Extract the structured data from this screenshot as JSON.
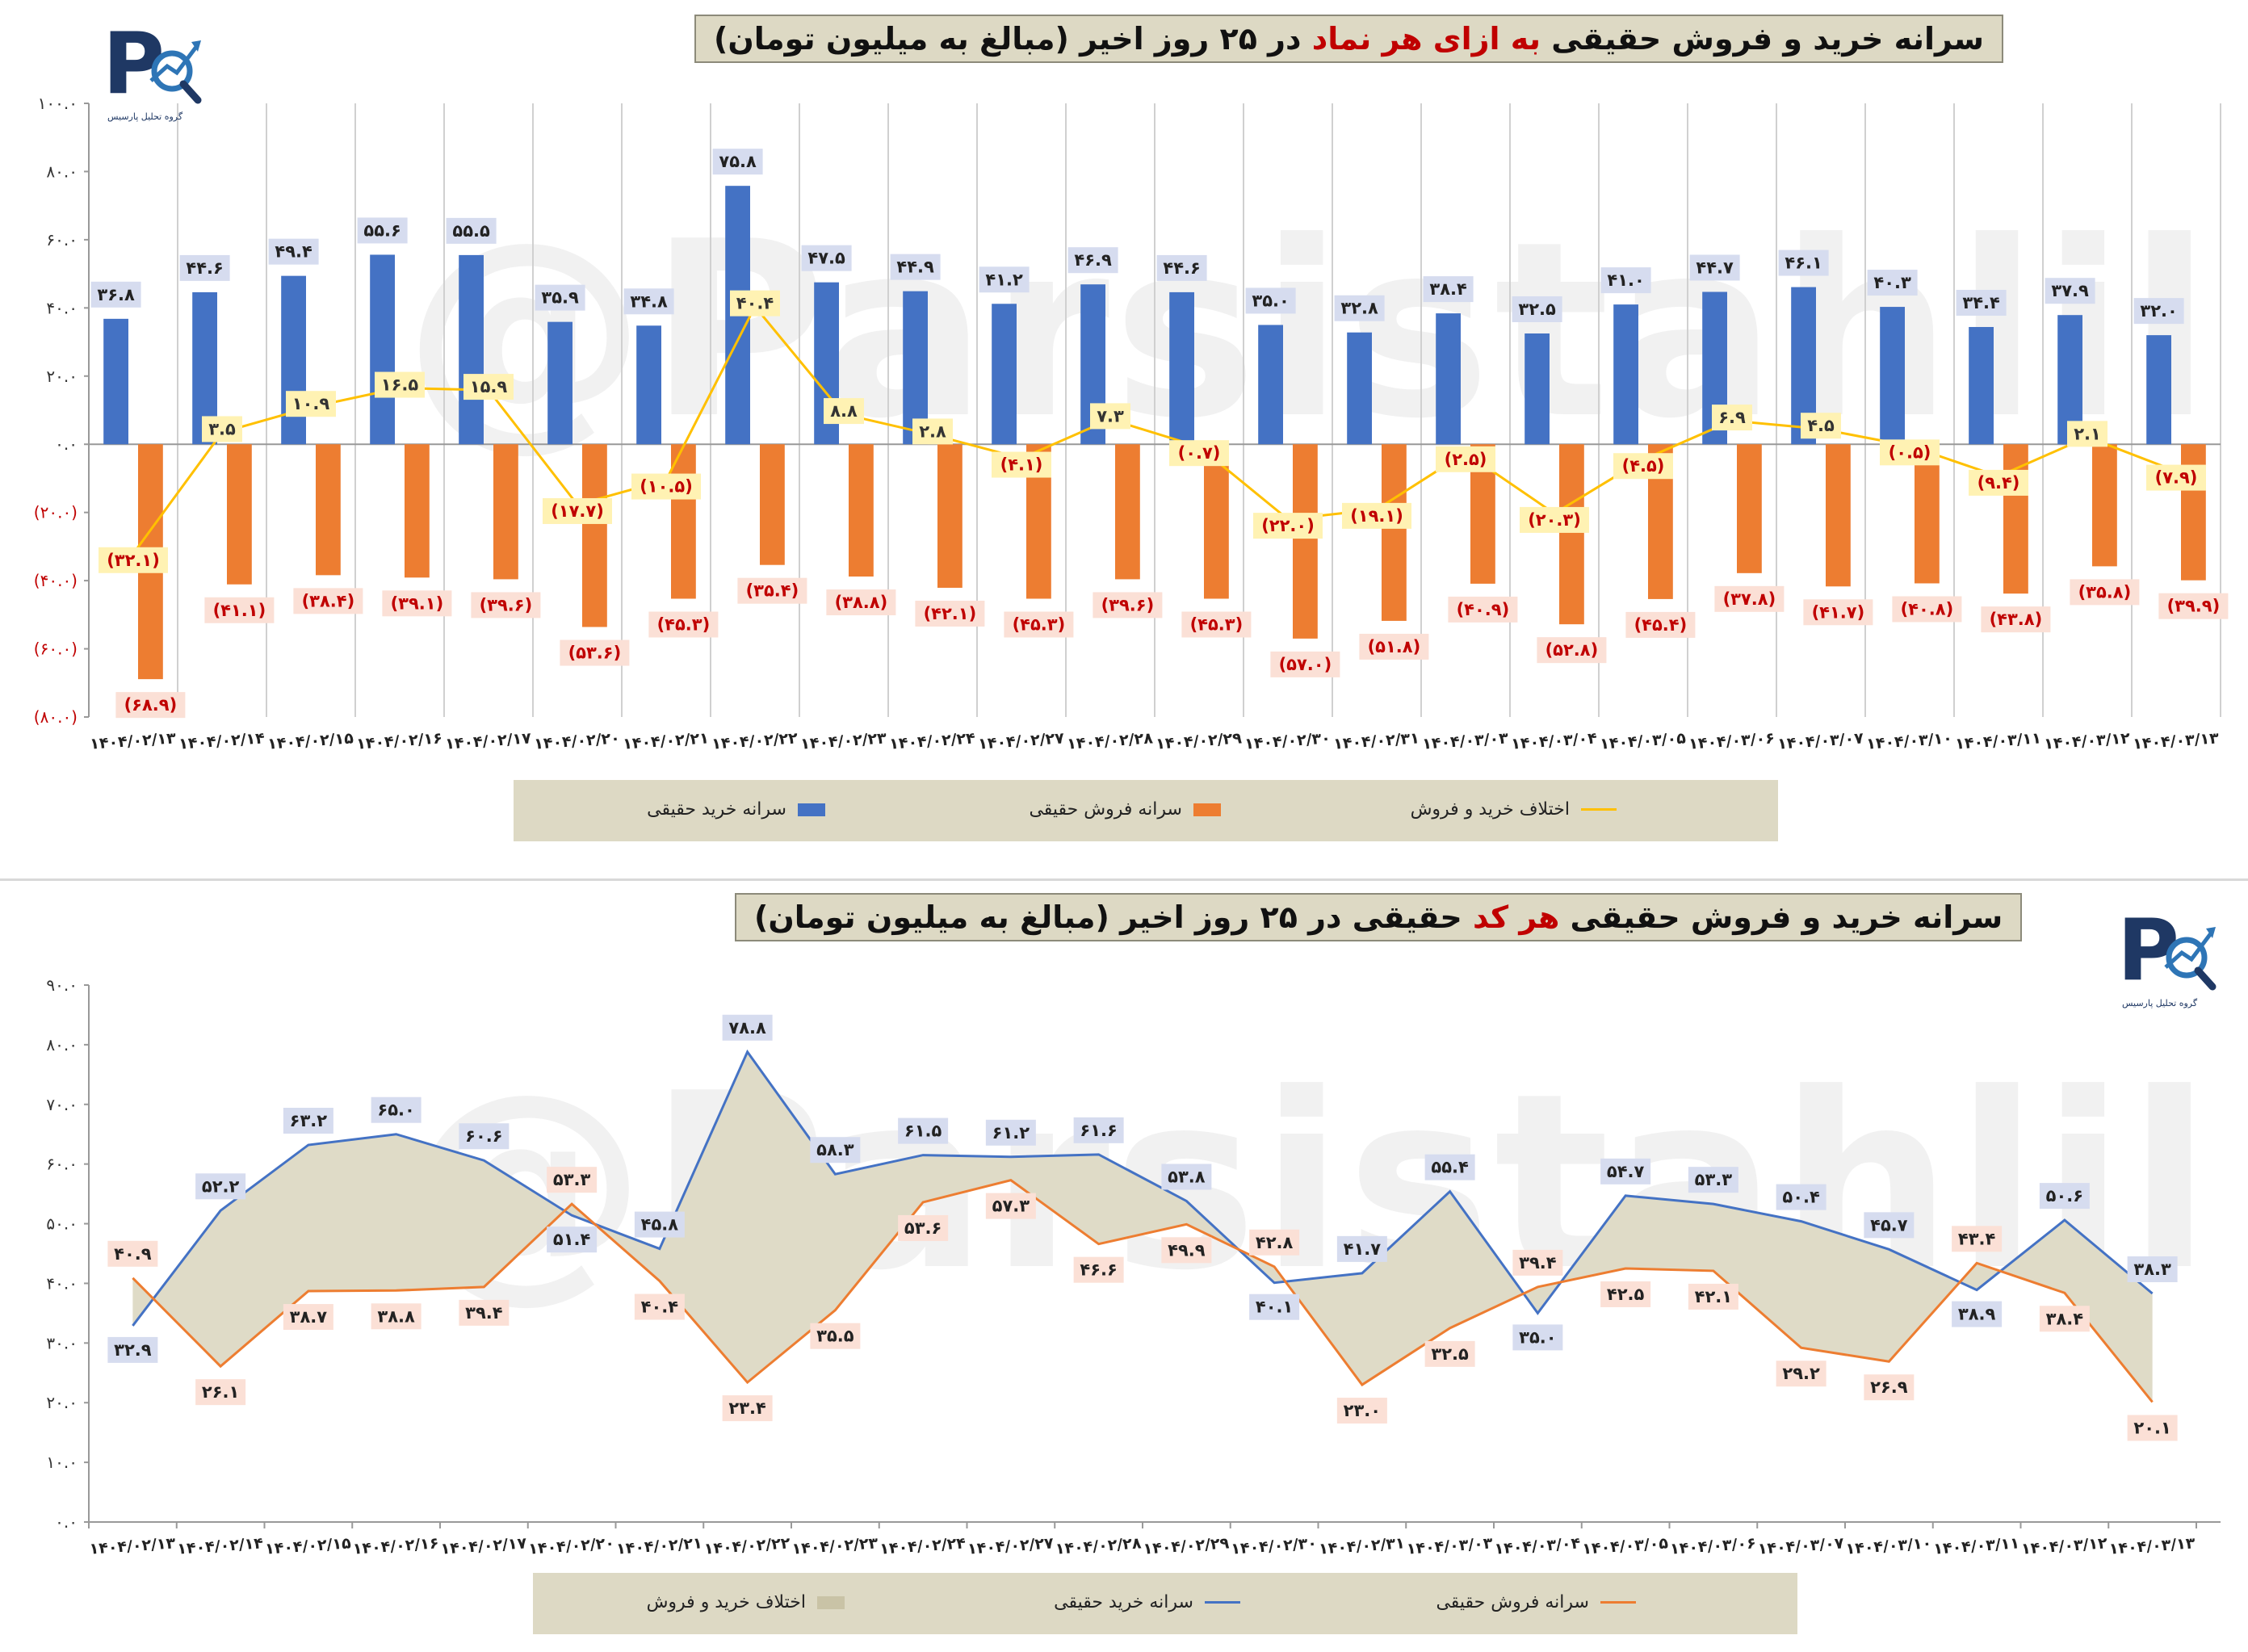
{
  "chart_data": [
    {
      "type": "bar",
      "title": "سرانه خرید و فروش حقیقی به ازای هر نماد در ۲۵ روز اخیر (مبالغ به میلیون تومان)",
      "title_highlight": "به ازای هر نماد",
      "categories": [
        "۱۴۰۴/۰۲/۱۳",
        "۱۴۰۴/۰۲/۱۴",
        "۱۴۰۴/۰۲/۱۵",
        "۱۴۰۴/۰۲/۱۶",
        "۱۴۰۴/۰۲/۱۷",
        "۱۴۰۴/۰۲/۲۰",
        "۱۴۰۴/۰۲/۲۱",
        "۱۴۰۴/۰۲/۲۲",
        "۱۴۰۴/۰۲/۲۳",
        "۱۴۰۴/۰۲/۲۴",
        "۱۴۰۴/۰۲/۲۷",
        "۱۴۰۴/۰۲/۲۸",
        "۱۴۰۴/۰۲/۲۹",
        "۱۴۰۴/۰۲/۳۰",
        "۱۴۰۴/۰۲/۳۱",
        "۱۴۰۴/۰۳/۰۳",
        "۱۴۰۴/۰۳/۰۴",
        "۱۴۰۴/۰۳/۰۵",
        "۱۴۰۴/۰۳/۰۶",
        "۱۴۰۴/۰۳/۰۷",
        "۱۴۰۴/۰۳/۱۰",
        "۱۴۰۴/۰۳/۱۱",
        "۱۴۰۴/۰۳/۱۲",
        "۱۴۰۴/۰۳/۱۳"
      ],
      "ylim": [
        -80,
        100
      ],
      "yticks": [
        100,
        80,
        60,
        40,
        20,
        0,
        -20,
        -40,
        -60,
        -80
      ],
      "ytick_labels": [
        "۱۰۰.۰",
        "۸۰.۰",
        "۶۰.۰",
        "۴۰.۰",
        "۲۰.۰",
        "۰.۰",
        "(۲۰.۰)",
        "(۴۰.۰)",
        "(۶۰.۰)",
        "(۸۰.۰)"
      ],
      "series": [
        {
          "name": "سرانه خرید حقیقی",
          "color": "#4472c4",
          "kind": "bar",
          "values": [
            36.8,
            44.6,
            49.4,
            55.6,
            55.5,
            35.9,
            34.8,
            75.8,
            47.5,
            44.9,
            41.2,
            46.9,
            44.6,
            35.0,
            32.8,
            38.4,
            32.5,
            41.0,
            44.7,
            46.1,
            40.3,
            34.4,
            37.9,
            32.0
          ],
          "labels": [
            "۳۶.۸",
            "۴۴.۶",
            "۴۹.۴",
            "۵۵.۶",
            "۵۵.۵",
            "۳۵.۹",
            "۳۴.۸",
            "۷۵.۸",
            "۴۷.۵",
            "۴۴.۹",
            "۴۱.۲",
            "۴۶.۹",
            "۴۴.۶",
            "۳۵.۰",
            "۳۲.۸",
            "۳۸.۴",
            "۳۲.۵",
            "۴۱.۰",
            "۴۴.۷",
            "۴۶.۱",
            "۴۰.۳",
            "۳۴.۴",
            "۳۷.۹",
            "۳۲.۰"
          ]
        },
        {
          "name": "سرانه فروش حقیقی",
          "color": "#ed7d31",
          "kind": "bar",
          "values": [
            -68.9,
            -41.1,
            -38.4,
            -39.1,
            -39.6,
            -53.6,
            -45.3,
            -35.4,
            -38.8,
            -42.1,
            -45.3,
            -39.6,
            -45.3,
            -57.0,
            -51.8,
            -40.9,
            -52.8,
            -45.4,
            -37.8,
            -41.7,
            -40.8,
            -43.8,
            -35.8,
            -39.9
          ],
          "labels": [
            "(۶۸.۹)",
            "(۴۱.۱)",
            "(۳۸.۴)",
            "(۳۹.۱)",
            "(۳۹.۶)",
            "(۵۳.۶)",
            "(۴۵.۳)",
            "(۳۵.۴)",
            "(۳۸.۸)",
            "(۴۲.۱)",
            "(۴۵.۳)",
            "(۳۹.۶)",
            "(۴۵.۳)",
            "(۵۷.۰)",
            "(۵۱.۸)",
            "(۴۰.۹)",
            "(۵۲.۸)",
            "(۴۵.۴)",
            "(۳۷.۸)",
            "(۴۱.۷)",
            "(۴۰.۸)",
            "(۴۳.۸)",
            "(۳۵.۸)",
            "(۳۹.۹)"
          ]
        },
        {
          "name": "اختلاف خرید و فروش",
          "color": "#ffc000",
          "kind": "line",
          "values": [
            -32.1,
            3.5,
            10.9,
            16.5,
            15.9,
            -17.7,
            -10.5,
            40.4,
            8.8,
            2.8,
            -4.1,
            7.3,
            -0.7,
            -22.0,
            -19.1,
            -2.5,
            -20.3,
            -4.5,
            6.9,
            4.5,
            -0.5,
            -9.4,
            2.1,
            -7.9
          ],
          "labels": [
            "(۳۲.۱)",
            "۳.۵",
            "۱۰.۹",
            "۱۶.۵",
            "۱۵.۹",
            "(۱۷.۷)",
            "(۱۰.۵)",
            "۴۰.۴",
            "۸.۸",
            "۲.۸",
            "(۴.۱)",
            "۷.۳",
            "(۰.۷)",
            "(۲۲.۰)",
            "(۱۹.۱)",
            "(۲.۵)",
            "(۲۰.۳)",
            "(۴.۵)",
            "۶.۹",
            "۴.۵",
            "(۰.۵)",
            "(۹.۴)",
            "۲.۱",
            "(۷.۹)"
          ]
        }
      ],
      "legend": [
        "سرانه خرید حقیقی",
        "سرانه فروش حقیقی",
        "اختلاف خرید و فروش"
      ]
    },
    {
      "type": "line",
      "title": "سرانه خرید و فروش حقیقی هر کد حقیقی در ۲۵ روز اخیر (مبالغ به میلیون تومان)",
      "title_highlight": "هر کد",
      "categories": [
        "۱۴۰۴/۰۲/۱۳",
        "۱۴۰۴/۰۲/۱۴",
        "۱۴۰۴/۰۲/۱۵",
        "۱۴۰۴/۰۲/۱۶",
        "۱۴۰۴/۰۲/۱۷",
        "۱۴۰۴/۰۲/۲۰",
        "۱۴۰۴/۰۲/۲۱",
        "۱۴۰۴/۰۲/۲۲",
        "۱۴۰۴/۰۲/۲۳",
        "۱۴۰۴/۰۲/۲۴",
        "۱۴۰۴/۰۲/۲۷",
        "۱۴۰۴/۰۲/۲۸",
        "۱۴۰۴/۰۲/۲۹",
        "۱۴۰۴/۰۲/۳۰",
        "۱۴۰۴/۰۲/۳۱",
        "۱۴۰۴/۰۳/۰۳",
        "۱۴۰۴/۰۳/۰۴",
        "۱۴۰۴/۰۳/۰۵",
        "۱۴۰۴/۰۳/۰۶",
        "۱۴۰۴/۰۳/۰۷",
        "۱۴۰۴/۰۳/۱۰",
        "۱۴۰۴/۰۳/۱۱",
        "۱۴۰۴/۰۳/۱۲",
        "۱۴۰۴/۰۳/۱۳"
      ],
      "ylim": [
        0,
        90
      ],
      "yticks": [
        90,
        80,
        70,
        60,
        50,
        40,
        30,
        20,
        10,
        0
      ],
      "ytick_labels": [
        "۹۰.۰",
        "۸۰.۰",
        "۷۰.۰",
        "۶۰.۰",
        "۵۰.۰",
        "۴۰.۰",
        "۳۰.۰",
        "۲۰.۰",
        "۱۰.۰",
        "۰.۰"
      ],
      "series": [
        {
          "name": "سرانه خرید حقیقی",
          "color": "#4472c4",
          "kind": "line",
          "values": [
            32.9,
            52.2,
            63.2,
            65.0,
            60.6,
            51.4,
            45.8,
            78.8,
            58.3,
            61.5,
            61.2,
            61.6,
            53.8,
            40.1,
            41.7,
            55.4,
            35.0,
            54.7,
            53.3,
            50.4,
            45.7,
            38.9,
            50.6,
            38.3
          ],
          "labels": [
            "۳۲.۹",
            "۵۲.۲",
            "۶۳.۲",
            "۶۵.۰",
            "۶۰.۶",
            "۵۱.۴",
            "۴۵.۸",
            "۷۸.۸",
            "۵۸.۳",
            "۶۱.۵",
            "۶۱.۲",
            "۶۱.۶",
            "۵۳.۸",
            "۴۰.۱",
            "۴۱.۷",
            "۵۵.۴",
            "۳۵.۰",
            "۵۴.۷",
            "۵۳.۳",
            "۵۰.۴",
            "۴۵.۷",
            "۳۸.۹",
            "۵۰.۶",
            "۳۸.۳"
          ]
        },
        {
          "name": "سرانه فروش حقیقی",
          "color": "#ed7d31",
          "kind": "line",
          "values": [
            40.9,
            26.1,
            38.7,
            38.8,
            39.4,
            53.3,
            40.4,
            23.4,
            35.5,
            53.6,
            57.3,
            46.6,
            49.9,
            42.8,
            23.0,
            32.5,
            39.4,
            42.5,
            42.1,
            29.2,
            26.9,
            43.4,
            38.4,
            20.1
          ],
          "labels": [
            "۴۰.۹",
            "۲۶.۱",
            "۳۸.۷",
            "۳۸.۸",
            "۳۹.۴",
            "۵۳.۳",
            "۴۰.۴",
            "۲۳.۴",
            "۳۵.۵",
            "۵۳.۶",
            "۵۷.۳",
            "۴۶.۶",
            "۴۹.۹",
            "۴۲.۸",
            "۲۳.۰",
            "۳۲.۵",
            "۳۹.۴",
            "۴۲.۵",
            "۴۲.۱",
            "۲۹.۲",
            "۲۶.۹",
            "۴۳.۴",
            "۳۸.۴",
            "۲۰.۱"
          ]
        },
        {
          "name": "اختلاف خرید و فروش",
          "color": "#ddd9c4",
          "kind": "area"
        }
      ],
      "legend": [
        "اختلاف خرید و فروش",
        "سرانه خرید حقیقی",
        "سرانه فروش حقیقی"
      ]
    }
  ],
  "logo": {
    "caption": "گروه تحلیل پارسیس"
  },
  "watermark": "@Parsistahlil"
}
